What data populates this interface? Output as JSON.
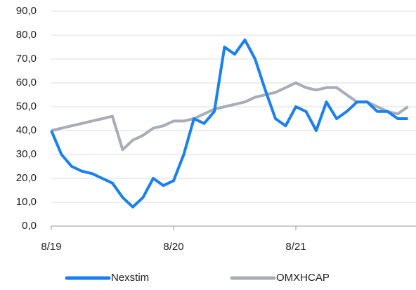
{
  "chart_data": {
    "type": "line",
    "x": [
      "8/19",
      "9/19",
      "10/19",
      "11/19",
      "12/19",
      "1/20",
      "2/20",
      "3/20",
      "4/20",
      "5/20",
      "6/20",
      "7/20",
      "8/20",
      "9/20",
      "10/20",
      "11/20",
      "12/20",
      "1/21",
      "2/21",
      "3/21",
      "4/21",
      "5/21",
      "6/21",
      "7/21",
      "8/21",
      "9/21",
      "10/21",
      "11/21",
      "12/21",
      "1/22",
      "2/22",
      "3/22",
      "4/22",
      "5/22",
      "6/22",
      "7/22"
    ],
    "series": [
      {
        "name": "Nexstim",
        "color": "#1a7ff0",
        "values": [
          40,
          30,
          25,
          23,
          22,
          20,
          18,
          12,
          8,
          12,
          20,
          17,
          19,
          30,
          45,
          43,
          48,
          75,
          72,
          78,
          70,
          57,
          45,
          42,
          50,
          48,
          40,
          52,
          45,
          48,
          52,
          52,
          48,
          48,
          45,
          45
        ]
      },
      {
        "name": "OMXHCAP",
        "color": "#a9acb7",
        "values": [
          40,
          41,
          42,
          43,
          44,
          45,
          46,
          32,
          36,
          38,
          41,
          42,
          44,
          44,
          45,
          47,
          49,
          50,
          51,
          52,
          54,
          55,
          56,
          58,
          60,
          58,
          57,
          58,
          58,
          55,
          52,
          52,
          50,
          48,
          47,
          50
        ]
      }
    ],
    "xticks": [
      "8/19",
      "8/20",
      "8/21"
    ],
    "ylim": [
      0,
      90
    ],
    "yticks": [
      {
        "value": 0,
        "label": "0,0"
      },
      {
        "value": 10,
        "label": "10,0"
      },
      {
        "value": 20,
        "label": "20,0"
      },
      {
        "value": 30,
        "label": "30,0"
      },
      {
        "value": 40,
        "label": "40,0"
      },
      {
        "value": 50,
        "label": "50,0"
      },
      {
        "value": 60,
        "label": "60,0"
      },
      {
        "value": 70,
        "label": "70,0"
      },
      {
        "value": 80,
        "label": "80,0"
      },
      {
        "value": 90,
        "label": "90,0"
      }
    ],
    "grid": true,
    "legend": "bottom"
  }
}
